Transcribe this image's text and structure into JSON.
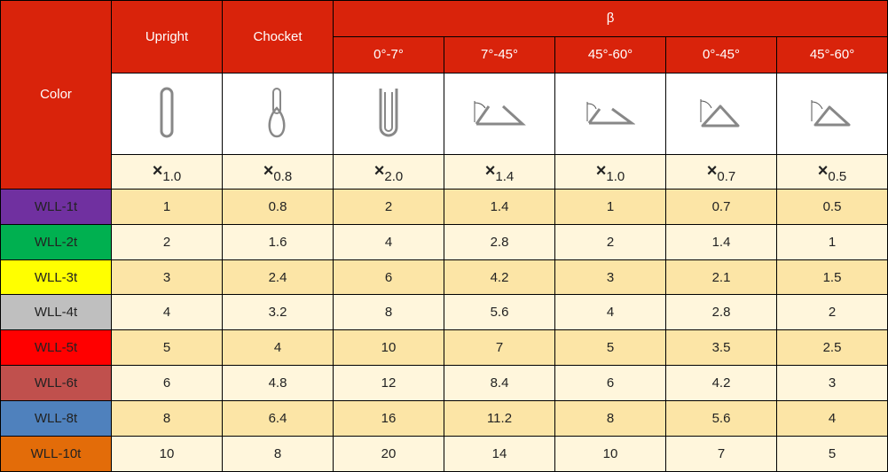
{
  "header": {
    "color_label": "Color",
    "upright": "Upright",
    "chocket": "Chocket",
    "beta": "β",
    "angles": [
      "0°-7°",
      "7°-45°",
      "45°-60°",
      "0°-45°",
      "45°-60°"
    ]
  },
  "icons": [
    "upright-loop-icon",
    "choker-hitch-icon",
    "basket-vertical-icon",
    "basket-angle-7-45-icon",
    "basket-angle-45-60-icon",
    "triangle-angle-0-45-icon",
    "triangle-angle-45-60-icon"
  ],
  "multipliers": [
    "1.0",
    "0.8",
    "2.0",
    "1.4",
    "1.0",
    "0.7",
    "0.5"
  ],
  "multiplier_symbol": "×",
  "rows": [
    {
      "label": "WLL-1t",
      "color": "#7030A0",
      "values": [
        "1",
        "0.8",
        "2",
        "1.4",
        "1",
        "0.7",
        "0.5"
      ]
    },
    {
      "label": "WLL-2t",
      "color": "#00B050",
      "values": [
        "2",
        "1.6",
        "4",
        "2.8",
        "2",
        "1.4",
        "1"
      ]
    },
    {
      "label": "WLL-3t",
      "color": "#FFFF00",
      "values": [
        "3",
        "2.4",
        "6",
        "4.2",
        "3",
        "2.1",
        "1.5"
      ]
    },
    {
      "label": "WLL-4t",
      "color": "#BFBFBF",
      "values": [
        "4",
        "3.2",
        "8",
        "5.6",
        "4",
        "2.8",
        "2"
      ]
    },
    {
      "label": "WLL-5t",
      "color": "#FF0000",
      "values": [
        "5",
        "4",
        "10",
        "7",
        "5",
        "3.5",
        "2.5"
      ]
    },
    {
      "label": "WLL-6t",
      "color": "#C0504D",
      "values": [
        "6",
        "4.8",
        "12",
        "8.4",
        "6",
        "4.2",
        "3"
      ]
    },
    {
      "label": "WLL-8t",
      "color": "#4F81BD",
      "values": [
        "8",
        "6.4",
        "16",
        "11.2",
        "8",
        "5.6",
        "4"
      ]
    },
    {
      "label": "WLL-10t",
      "color": "#E36C09",
      "values": [
        "10",
        "8",
        "20",
        "14",
        "10",
        "7",
        "5"
      ]
    }
  ]
}
